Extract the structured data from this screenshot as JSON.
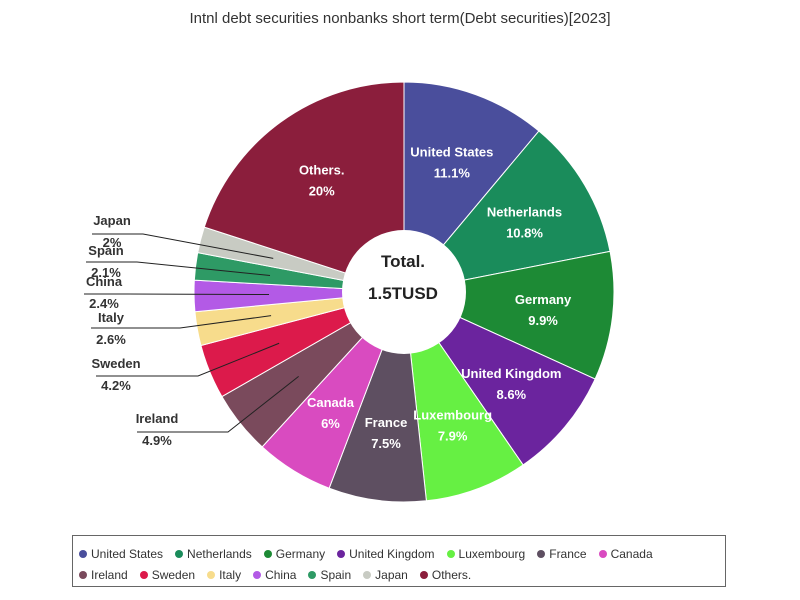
{
  "chart_data": {
    "type": "pie",
    "title": "Intnl debt securities nonbanks short term(Debt securities)[2023]",
    "center_title": "Total.",
    "center_value": "1.5TUSD",
    "legend_position": "bottom",
    "slices": [
      {
        "name": "United States",
        "value": 11.1,
        "label": "11.1%",
        "color": "#4a4e9c"
      },
      {
        "name": "Netherlands",
        "value": 10.8,
        "label": "10.8%",
        "color": "#1a8c5b"
      },
      {
        "name": "Germany",
        "value": 9.9,
        "label": "9.9%",
        "color": "#1d8a35"
      },
      {
        "name": "United Kingdom",
        "value": 8.6,
        "label": "8.6%",
        "color": "#6b249e"
      },
      {
        "name": "Luxembourg",
        "value": 7.9,
        "label": "7.9%",
        "color": "#66f043"
      },
      {
        "name": "France",
        "value": 7.5,
        "label": "7.5%",
        "color": "#5e4f61"
      },
      {
        "name": "Canada",
        "value": 6,
        "label": "6%",
        "color": "#d94bc0"
      },
      {
        "name": "Ireland",
        "value": 4.9,
        "label": "4.9%",
        "color": "#7a4a5c"
      },
      {
        "name": "Sweden",
        "value": 4.2,
        "label": "4.2%",
        "color": "#dc1a4b"
      },
      {
        "name": "Italy",
        "value": 2.6,
        "label": "2.6%",
        "color": "#f7dc8c"
      },
      {
        "name": "China",
        "value": 2.4,
        "label": "2.4%",
        "color": "#b35ae6"
      },
      {
        "name": "Spain",
        "value": 2.1,
        "label": "2.1%",
        "color": "#2e9a65"
      },
      {
        "name": "Japan",
        "value": 2,
        "label": "2%",
        "color": "#c8cbc3"
      },
      {
        "name": "Others.",
        "value": 20,
        "label": "20%",
        "color": "#8b1e3c"
      }
    ]
  }
}
